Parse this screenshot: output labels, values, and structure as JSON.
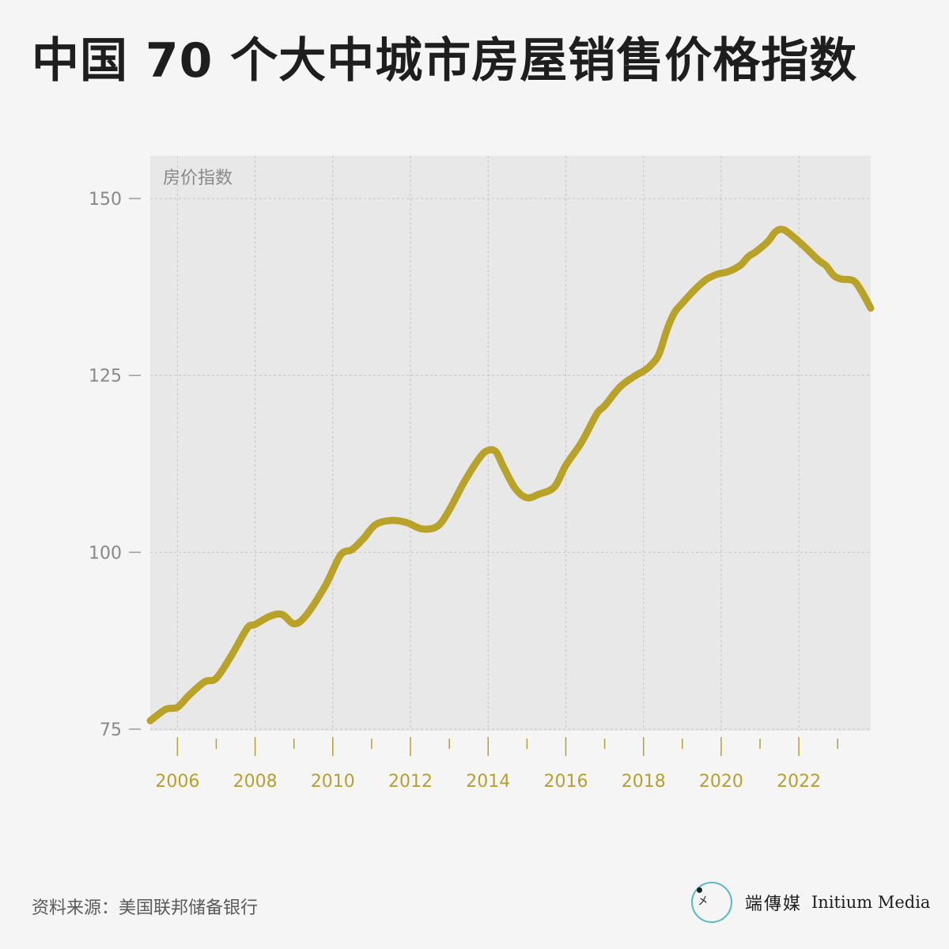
{
  "title": "中国 70 个大中城市房屋销售价格指数",
  "source": "资料来源：美国联邦储备银行",
  "brand": {
    "name_cn": "端傳媒",
    "name_en": "Initium Media",
    "logo_icon": "initium-logo-icon"
  },
  "colors": {
    "line": "#b9a228",
    "plot_bg": "#e8e8e8",
    "page_bg": "#f5f5f5",
    "axis_text": "#888888",
    "year_text": "#b5a030"
  },
  "chart_data": {
    "type": "line",
    "title": "中国 70 个大中城市房屋销售价格指数",
    "xlabel": "",
    "ylabel": "房价指数",
    "xlim": [
      2005.3,
      2023.85
    ],
    "ylim": [
      75,
      155
    ],
    "yticks": [
      75,
      100,
      125,
      150
    ],
    "xticks": [
      "2006",
      "2008",
      "2010",
      "2012",
      "2014",
      "2016",
      "2018",
      "2020",
      "2022"
    ],
    "grid": true,
    "series": [
      {
        "points": [
          [
            2005.3,
            76.2
          ],
          [
            2005.7,
            77.8
          ],
          [
            2006.0,
            78.1
          ],
          [
            2006.3,
            79.8
          ],
          [
            2006.7,
            81.7
          ],
          [
            2007.0,
            82.2
          ],
          [
            2007.4,
            85.5
          ],
          [
            2007.8,
            89.3
          ],
          [
            2008.0,
            89.8
          ],
          [
            2008.4,
            91.0
          ],
          [
            2008.7,
            91.2
          ],
          [
            2009.0,
            89.9
          ],
          [
            2009.3,
            91.0
          ],
          [
            2009.8,
            95.2
          ],
          [
            2010.2,
            99.6
          ],
          [
            2010.5,
            100.4
          ],
          [
            2010.8,
            102.0
          ],
          [
            2011.1,
            103.9
          ],
          [
            2011.5,
            104.5
          ],
          [
            2011.9,
            104.2
          ],
          [
            2012.3,
            103.3
          ],
          [
            2012.7,
            103.7
          ],
          [
            2013.0,
            106.0
          ],
          [
            2013.4,
            110.1
          ],
          [
            2013.8,
            113.5
          ],
          [
            2014.0,
            114.4
          ],
          [
            2014.2,
            114.2
          ],
          [
            2014.4,
            112.0
          ],
          [
            2014.7,
            109.0
          ],
          [
            2015.0,
            107.7
          ],
          [
            2015.3,
            108.2
          ],
          [
            2015.7,
            109.2
          ],
          [
            2016.0,
            112.3
          ],
          [
            2016.4,
            115.5
          ],
          [
            2016.8,
            119.6
          ],
          [
            2017.0,
            120.7
          ],
          [
            2017.4,
            123.4
          ],
          [
            2017.8,
            125.0
          ],
          [
            2018.0,
            125.6
          ],
          [
            2018.2,
            126.5
          ],
          [
            2018.4,
            128.0
          ],
          [
            2018.6,
            131.4
          ],
          [
            2018.8,
            133.9
          ],
          [
            2019.0,
            135.2
          ],
          [
            2019.3,
            137.0
          ],
          [
            2019.6,
            138.5
          ],
          [
            2019.9,
            139.3
          ],
          [
            2020.2,
            139.7
          ],
          [
            2020.5,
            140.6
          ],
          [
            2020.7,
            141.8
          ],
          [
            2020.9,
            142.5
          ],
          [
            2021.2,
            143.9
          ],
          [
            2021.4,
            145.3
          ],
          [
            2021.6,
            145.6
          ],
          [
            2021.9,
            144.4
          ],
          [
            2022.2,
            142.9
          ],
          [
            2022.5,
            141.3
          ],
          [
            2022.7,
            140.5
          ],
          [
            2022.9,
            139.1
          ],
          [
            2023.1,
            138.6
          ],
          [
            2023.4,
            138.4
          ],
          [
            2023.6,
            137.0
          ],
          [
            2023.85,
            134.5
          ]
        ]
      }
    ]
  }
}
